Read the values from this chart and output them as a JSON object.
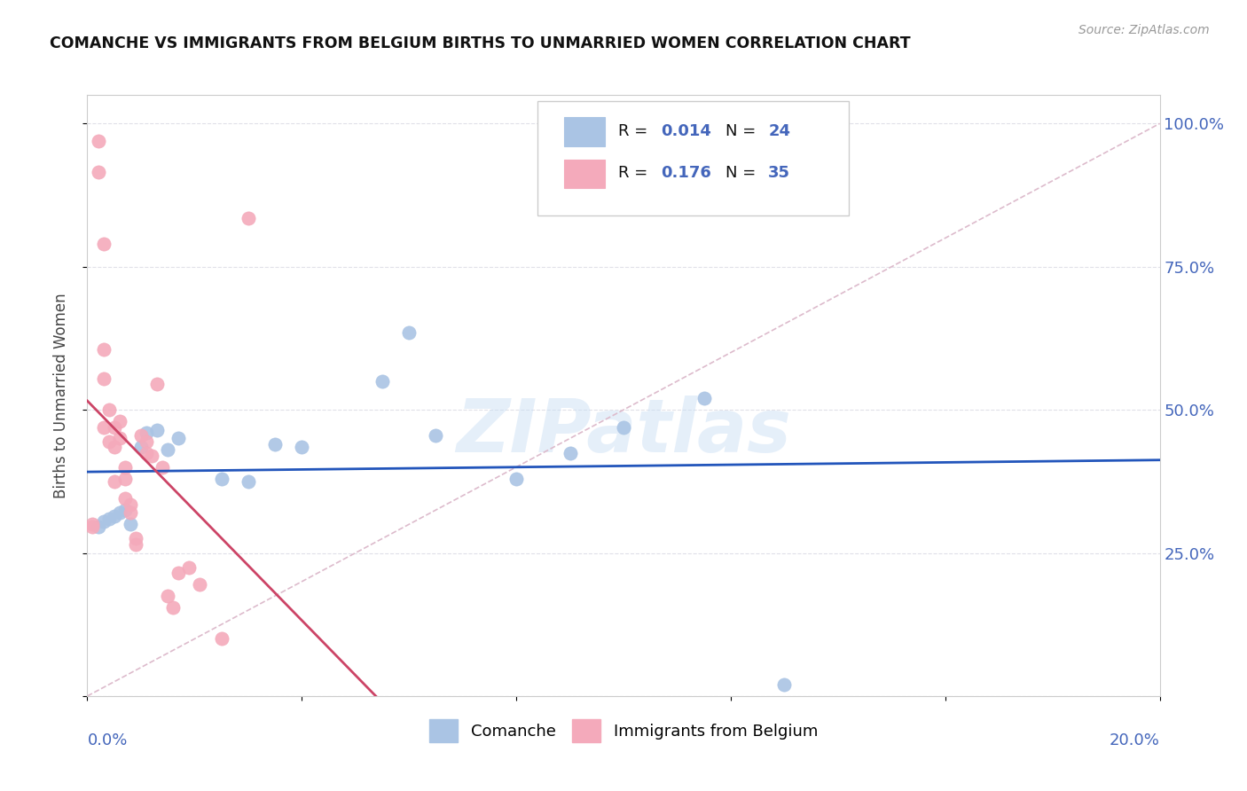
{
  "title": "COMANCHE VS IMMIGRANTS FROM BELGIUM BIRTHS TO UNMARRIED WOMEN CORRELATION CHART",
  "source": "Source: ZipAtlas.com",
  "ylabel": "Births to Unmarried Women",
  "comanche_color": "#aac4e4",
  "immigrants_color": "#f4aabb",
  "trend_color_comanche": "#2255bb",
  "trend_color_immigrants": "#cc4466",
  "diagonal_color": "#ddbbcc",
  "watermark": "ZIPatlas",
  "comanche_x": [
    0.002,
    0.003,
    0.004,
    0.005,
    0.006,
    0.007,
    0.008,
    0.01,
    0.011,
    0.013,
    0.015,
    0.017,
    0.025,
    0.03,
    0.035,
    0.04,
    0.055,
    0.06,
    0.065,
    0.08,
    0.09,
    0.1,
    0.115,
    0.13
  ],
  "comanche_y": [
    0.295,
    0.305,
    0.31,
    0.315,
    0.32,
    0.325,
    0.3,
    0.435,
    0.46,
    0.465,
    0.43,
    0.45,
    0.38,
    0.375,
    0.44,
    0.435,
    0.55,
    0.635,
    0.455,
    0.38,
    0.425,
    0.47,
    0.52,
    0.02
  ],
  "immigrants_x": [
    0.001,
    0.001,
    0.002,
    0.002,
    0.003,
    0.003,
    0.003,
    0.003,
    0.004,
    0.004,
    0.005,
    0.005,
    0.005,
    0.006,
    0.006,
    0.007,
    0.007,
    0.007,
    0.008,
    0.008,
    0.009,
    0.009,
    0.01,
    0.011,
    0.011,
    0.012,
    0.013,
    0.014,
    0.015,
    0.016,
    0.017,
    0.019,
    0.021,
    0.025,
    0.03
  ],
  "immigrants_y": [
    0.3,
    0.295,
    0.97,
    0.915,
    0.79,
    0.605,
    0.555,
    0.47,
    0.5,
    0.445,
    0.47,
    0.435,
    0.375,
    0.48,
    0.45,
    0.4,
    0.38,
    0.345,
    0.335,
    0.32,
    0.275,
    0.265,
    0.455,
    0.445,
    0.425,
    0.42,
    0.545,
    0.4,
    0.175,
    0.155,
    0.215,
    0.225,
    0.195,
    0.1,
    0.835
  ],
  "xlim": [
    0.0,
    0.2
  ],
  "ylim": [
    0.0,
    1.05
  ],
  "bg_color": "#ffffff",
  "title_color": "#111111",
  "axis_color": "#4466bb",
  "grid_color": "#e0e0e8",
  "legend_text_color": "#111111",
  "legend_num_color": "#4466bb"
}
